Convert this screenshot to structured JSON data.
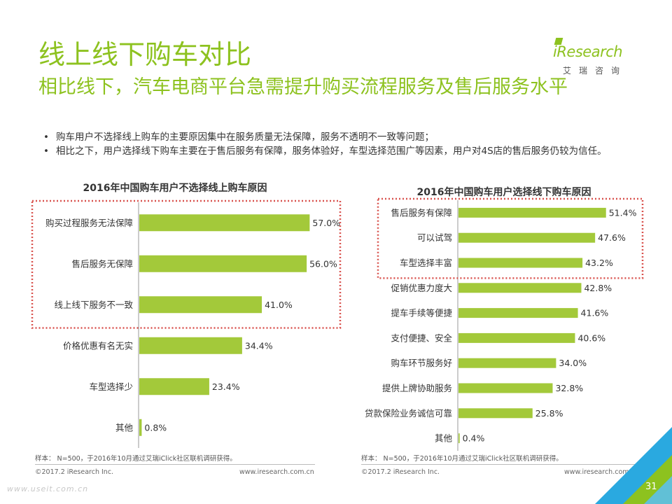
{
  "header": {
    "title": "线上线下购车对比",
    "subtitle": "相比线下，汽车电商平台急需提升购买流程服务及售后服务水平"
  },
  "logo": {
    "word": "iResearch",
    "cn": "艾瑞咨询"
  },
  "bullets": [
    "购车用户不选择线上购车的主要原因集中在服务质量无法保障，服务不透明不一致等问题；",
    "相比之下，用户选择线下购车主要在于售后服务有保障，服务体验好，车型选择范围广等因素，用户对4S店的售后服务仍较为信任。"
  ],
  "colors": {
    "bar": "#a3c93a",
    "title": "#8dc21f",
    "highlight": "#d9534f"
  },
  "chart_data": [
    {
      "type": "bar",
      "orientation": "horizontal",
      "title": "2016年中国购车用户不选择线上购车原因",
      "categories": [
        "购买过程服务无法保障",
        "售后服务无保障",
        "线上线下服务不一致",
        "价格优惠有名无实",
        "车型选择少",
        "其他"
      ],
      "values": [
        57.0,
        56.0,
        41.0,
        34.4,
        23.4,
        0.8
      ],
      "value_labels": [
        "57.0%",
        "56.0%",
        "41.0%",
        "34.4%",
        "23.4%",
        "0.8%"
      ],
      "highlighted_top": 3,
      "note": "样本：  N=500，于2016年10月通过艾瑞iClick社区联机调研获得。"
    },
    {
      "type": "bar",
      "orientation": "horizontal",
      "title": "2016年中国购车用户选择线下购车原因",
      "categories": [
        "售后服务有保障",
        "可以试驾",
        "车型选择丰富",
        "促销优惠力度大",
        "提车手续等便捷",
        "支付便捷、安全",
        "购车环节服务好",
        "提供上牌协助服务",
        "贷款保险业务诚信可靠",
        "其他"
      ],
      "values": [
        51.4,
        47.6,
        43.2,
        42.8,
        41.6,
        40.6,
        34.0,
        32.8,
        25.8,
        0.4
      ],
      "value_labels": [
        "51.4%",
        "47.6%",
        "43.2%",
        "42.8%",
        "41.6%",
        "40.6%",
        "34.0%",
        "32.8%",
        "25.8%",
        "0.4%"
      ],
      "highlighted_top": 3,
      "note": "样本：  N=500，于2016年10月通过艾瑞iClick社区联机调研获得。"
    }
  ],
  "footer": {
    "copyright_left": "©2017.2 iResearch Inc.",
    "site_left": "www.iresearch.com.cn",
    "copyright_right": "©2017.2 iResearch Inc.",
    "site_right": "www.iresearch.com.cn",
    "watermark": "www.useit.com.cn",
    "page_number": "31"
  }
}
